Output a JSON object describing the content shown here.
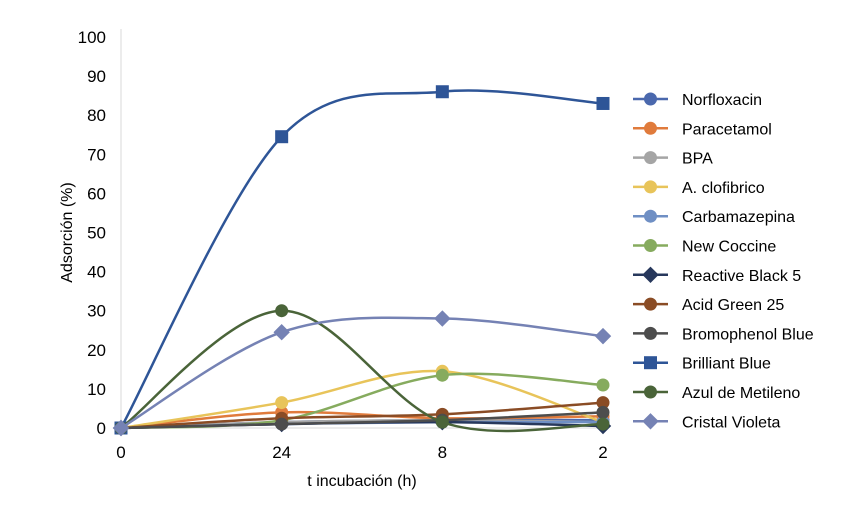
{
  "chart_data": {
    "type": "line",
    "title": "",
    "xlabel": "t incubación (h)",
    "ylabel": "Adsorción (%)",
    "categories": [
      "0",
      "24",
      "8",
      "2"
    ],
    "ylim": [
      0,
      100
    ],
    "yticks": [
      0,
      10,
      20,
      30,
      40,
      50,
      60,
      70,
      80,
      90,
      100
    ],
    "grid": false,
    "smooth": true,
    "legend_position": "right",
    "series": [
      {
        "name": "Norfloxacin",
        "color": "#4a68ad",
        "marker": "circle",
        "values": [
          0,
          1.5,
          2.0,
          2.0
        ]
      },
      {
        "name": "Paracetamol",
        "color": "#e07b3c",
        "marker": "circle",
        "values": [
          0,
          4.0,
          2.5,
          3.0
        ]
      },
      {
        "name": "BPA",
        "color": "#a5a5a5",
        "marker": "circle",
        "values": [
          0,
          1.5,
          2.0,
          1.5
        ]
      },
      {
        "name": "A. clofibrico",
        "color": "#e8c45a",
        "marker": "circle",
        "values": [
          0,
          6.5,
          14.5,
          1.5
        ]
      },
      {
        "name": "Carbamazepina",
        "color": "#6f8fc4",
        "marker": "circle",
        "values": [
          0,
          1.0,
          1.5,
          1.5
        ]
      },
      {
        "name": "New Coccine",
        "color": "#86ab5e",
        "marker": "circle",
        "values": [
          0,
          2.0,
          13.5,
          11.0
        ]
      },
      {
        "name": "Reactive Black 5",
        "color": "#27385c",
        "marker": "diamond",
        "values": [
          0,
          1.0,
          1.5,
          0.5
        ]
      },
      {
        "name": "Acid Green 25",
        "color": "#8a4c25",
        "marker": "circle",
        "values": [
          0,
          2.5,
          3.5,
          6.5
        ]
      },
      {
        "name": "Bromophenol Blue",
        "color": "#4d4d4d",
        "marker": "circle",
        "values": [
          0,
          1.0,
          2.0,
          4.0
        ]
      },
      {
        "name": "Brilliant Blue",
        "color": "#2e5597",
        "marker": "square",
        "values": [
          0,
          74.5,
          86.0,
          83.0
        ]
      },
      {
        "name": "Azul de Metileno",
        "color": "#4a6439",
        "marker": "circle",
        "values": [
          0,
          30.0,
          1.5,
          1.0
        ]
      },
      {
        "name": "Cristal Violeta",
        "color": "#7582b4",
        "marker": "diamond",
        "values": [
          0,
          24.5,
          28.0,
          23.5
        ]
      }
    ]
  }
}
